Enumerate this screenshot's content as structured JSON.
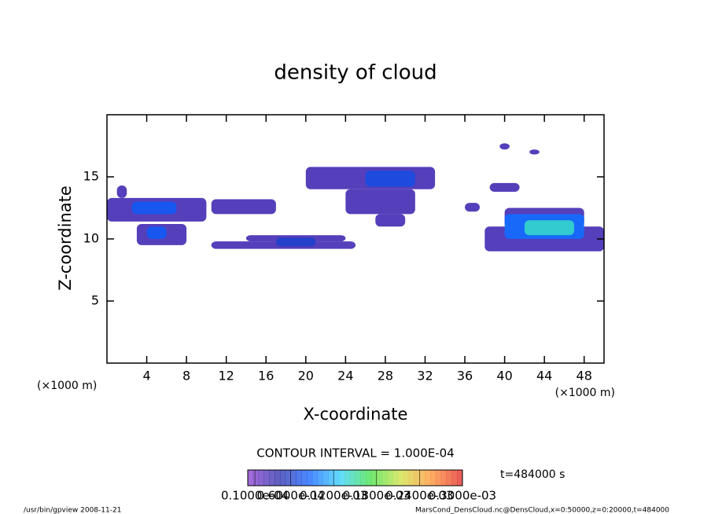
{
  "chart_data": {
    "type": "contour",
    "title": "density of cloud",
    "x_label": "X-coordinate",
    "y_label": "Z-coordinate",
    "x_unit": "(×1000 m)",
    "y_unit": "(×1000 m)",
    "xlim": [
      0,
      50
    ],
    "ylim": [
      0,
      20
    ],
    "xticks": [
      4,
      8,
      12,
      16,
      20,
      24,
      28,
      32,
      36,
      40,
      44,
      48
    ],
    "yticks": [
      5,
      10,
      15
    ],
    "cells": {
      "x0": [
        0,
        1,
        2.5,
        3,
        4,
        10.5,
        10.5,
        14,
        17,
        20,
        26,
        24,
        27,
        36,
        38,
        40,
        40,
        42,
        38.5,
        39.5,
        42.5
      ],
      "x1": [
        10,
        2,
        7,
        8,
        6,
        17,
        25,
        24,
        21,
        33,
        31,
        31,
        30,
        37.5,
        50,
        48,
        48,
        47,
        41.5,
        40.5,
        43.5
      ],
      "z0": [
        11.4,
        13.3,
        12,
        9.5,
        10,
        12,
        9.2,
        9.8,
        9.4,
        14,
        14.2,
        12,
        11,
        12.2,
        9,
        11,
        10,
        10.3,
        13.8,
        17.2,
        16.8
      ],
      "z1": [
        13.3,
        14.3,
        13,
        11.2,
        11,
        13.2,
        9.8,
        10.3,
        10.1,
        15.8,
        15.5,
        14,
        12,
        12.9,
        11,
        12.5,
        12,
        11.5,
        14.5,
        17.7,
        17.2
      ],
      "values": [
        3e-05,
        3e-05,
        8e-05,
        3e-05,
        8e-05,
        3e-05,
        3e-05,
        3e-05,
        6e-05,
        3e-05,
        7e-05,
        3e-05,
        3e-05,
        3e-05,
        3e-05,
        3e-05,
        9e-05,
        0.00014,
        3e-05,
        3e-05,
        3e-05
      ]
    },
    "colormap": [
      "#8a3ad0",
      "#2a2aa8",
      "#1060ff",
      "#30d0ff",
      "#40e040",
      "#d0e040",
      "#ff9030",
      "#e02020"
    ],
    "colorbar": {
      "lim": [
        0,
        0.0003
      ],
      "ticks": [
        {
          "value": 1e-05,
          "label": "0.1000e-04"
        },
        {
          "value": 6e-05,
          "label": "0.6000e-04"
        },
        {
          "value": 0.00012,
          "label": "0.1200e-03"
        },
        {
          "value": 0.00018,
          "label": "0.1800e-03"
        },
        {
          "value": 0.00024,
          "label": "0.2400e-03"
        },
        {
          "value": 0.0003,
          "label": "0.3000e-03"
        }
      ]
    },
    "contour_interval": "CONTOUR INTERVAL = 1.000E-04",
    "time": "t=484000 s",
    "footer_left": "/usr/bin/gpview   2008-11-21",
    "footer_right": "MarsCond_DensCloud.nc@DensCloud,x=0:50000,z=0:20000,t=484000"
  }
}
